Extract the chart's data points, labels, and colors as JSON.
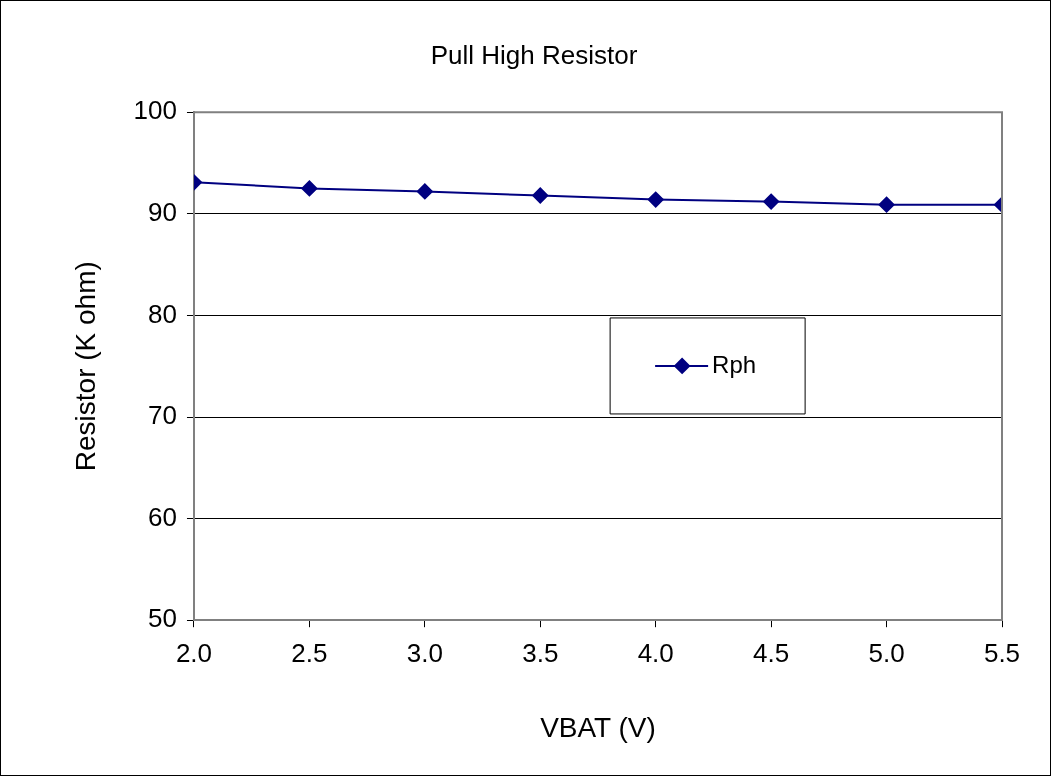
{
  "chart_data": {
    "type": "line",
    "title": "Pull High Resistor",
    "xlabel": "VBAT (V)",
    "ylabel": "Resistor (K ohm)",
    "x": [
      2.0,
      2.5,
      3.0,
      3.5,
      4.0,
      4.5,
      5.0,
      5.5
    ],
    "series": [
      {
        "name": "Rph",
        "color": "#000080",
        "values": [
          93.1,
          92.5,
          92.2,
          91.8,
          91.4,
          91.2,
          90.9,
          90.9
        ]
      }
    ],
    "xlim": [
      2.0,
      5.5
    ],
    "xticks": [
      {
        "value": 2,
        "label": "2.0"
      },
      {
        "value": 2.5,
        "label": "2.5"
      },
      {
        "value": 3,
        "label": "3.0"
      },
      {
        "value": 3.5,
        "label": "3.5"
      },
      {
        "value": 4,
        "label": "4.0"
      },
      {
        "value": 4.5,
        "label": "4.5"
      },
      {
        "value": 5,
        "label": "5.0"
      },
      {
        "value": 5.5,
        "label": "5.5"
      }
    ],
    "ylim": [
      50,
      100
    ],
    "yticks": [
      50,
      60,
      70,
      80,
      90,
      100
    ],
    "grid": "y",
    "legend": "center right",
    "marker": "diamond",
    "line_style": "solid"
  }
}
